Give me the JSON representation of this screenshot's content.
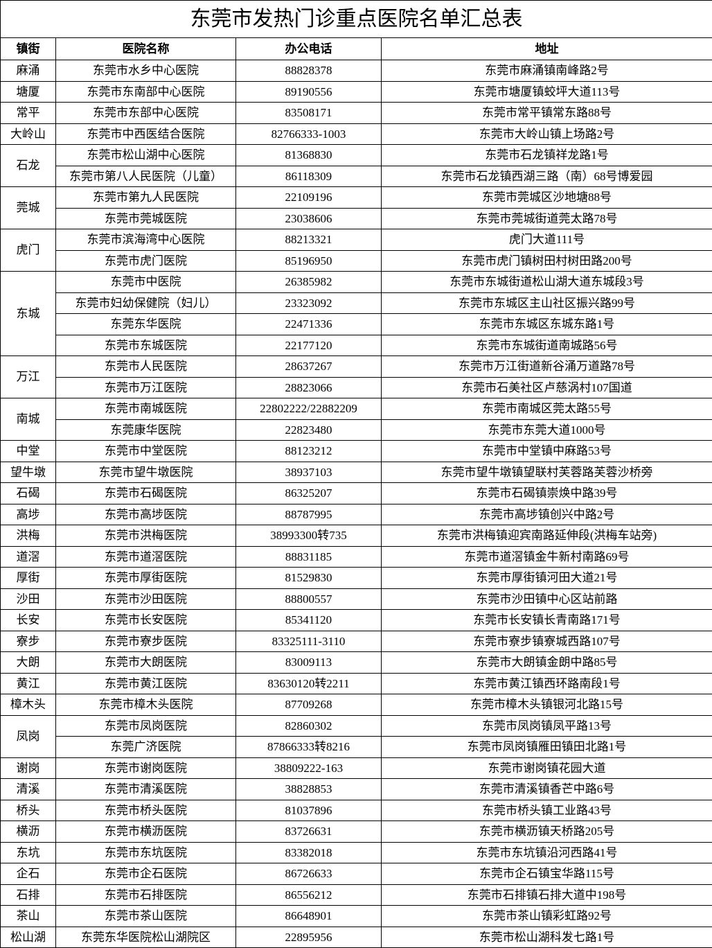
{
  "title": "东莞市发热门诊重点医院名单汇总表",
  "headers": {
    "town": "镇街",
    "hospital": "医院名称",
    "phone": "办公电话",
    "address": "地址"
  },
  "groups": [
    {
      "town": "麻涌",
      "rows": [
        {
          "hospital": "东莞市水乡中心医院",
          "phone": "88828378",
          "address": "东莞市麻涌镇南峰路2号"
        }
      ]
    },
    {
      "town": "塘厦",
      "rows": [
        {
          "hospital": "东莞市东南部中心医院",
          "phone": "89190556",
          "address": "东莞市塘厦镇蛟坪大道113号"
        }
      ]
    },
    {
      "town": "常平",
      "rows": [
        {
          "hospital": "东莞市东部中心医院",
          "phone": "83508171",
          "address": "东莞市常平镇常东路88号"
        }
      ]
    },
    {
      "town": "大岭山",
      "rows": [
        {
          "hospital": "东莞市中西医结合医院",
          "phone": "82766333-1003",
          "address": "东莞市大岭山镇上场路2号"
        }
      ]
    },
    {
      "town": "石龙",
      "rows": [
        {
          "hospital": "东莞市松山湖中心医院",
          "phone": "81368830",
          "address": "东莞市石龙镇祥龙路1号"
        },
        {
          "hospital": "东莞市第八人民医院（儿童）",
          "phone": "86118309",
          "address": "东莞市石龙镇西湖三路（南）68号博爱园"
        }
      ]
    },
    {
      "town": "莞城",
      "rows": [
        {
          "hospital": "东莞市第九人民医院",
          "phone": "22109196",
          "address": "东莞市莞城区沙地塘88号"
        },
        {
          "hospital": "东莞市莞城医院",
          "phone": "23038606",
          "address": "东莞市莞城街道莞太路78号"
        }
      ]
    },
    {
      "town": "虎门",
      "rows": [
        {
          "hospital": "东莞市滨海湾中心医院",
          "phone": "88213321",
          "address": "虎门大道111号"
        },
        {
          "hospital": "东莞市虎门医院",
          "phone": "85196950",
          "address": "东莞市虎门镇树田村树田路200号"
        }
      ]
    },
    {
      "town": "东城",
      "rows": [
        {
          "hospital": "东莞市中医院",
          "phone": "26385982",
          "address": "东莞市东城街道松山湖大道东城段3号"
        },
        {
          "hospital": "东莞市妇幼保健院（妇儿）",
          "phone": "23323092",
          "address": "东莞市东城区主山社区振兴路99号"
        },
        {
          "hospital": "东莞东华医院",
          "phone": "22471336",
          "address": "东莞市东城区东城东路1号"
        },
        {
          "hospital": "东莞市东城医院",
          "phone": "22177120",
          "address": "东莞市东城街道南城路56号"
        }
      ]
    },
    {
      "town": "万江",
      "rows": [
        {
          "hospital": "东莞市人民医院",
          "phone": "28637267",
          "address": "东莞市万江街道新谷涌万道路78号"
        },
        {
          "hospital": "东莞市万江医院",
          "phone": "28823066",
          "address": "东莞市石美社区卢慈涡村107国道"
        }
      ]
    },
    {
      "town": "南城",
      "rows": [
        {
          "hospital": "东莞市南城医院",
          "phone": "22802222/22882209",
          "address": "东莞市南城区莞太路55号"
        },
        {
          "hospital": "东莞康华医院",
          "phone": "22823480",
          "address": "东莞市东莞大道1000号"
        }
      ]
    },
    {
      "town": "中堂",
      "rows": [
        {
          "hospital": "东莞市中堂医院",
          "phone": "88123212",
          "address": "东莞市中堂镇中麻路53号"
        }
      ]
    },
    {
      "town": "望牛墩",
      "rows": [
        {
          "hospital": "东莞市望牛墩医院",
          "phone": "38937103",
          "address": "东莞市望牛墩镇望联村芙蓉路芙蓉沙桥旁"
        }
      ]
    },
    {
      "town": "石碣",
      "rows": [
        {
          "hospital": "东莞市石碣医院",
          "phone": "86325207",
          "address": "东莞市石碣镇崇焕中路39号"
        }
      ]
    },
    {
      "town": "高埗",
      "rows": [
        {
          "hospital": "东莞市高埗医院",
          "phone": "88787995",
          "address": "东莞市高埗镇创兴中路2号"
        }
      ]
    },
    {
      "town": "洪梅",
      "rows": [
        {
          "hospital": "东莞市洪梅医院",
          "phone": "38993300转735",
          "address": "东莞市洪梅镇迎宾南路延伸段(洪梅车站旁)"
        }
      ]
    },
    {
      "town": "道滘",
      "rows": [
        {
          "hospital": "东莞市道滘医院",
          "phone": "88831185",
          "address": "东莞市道滘镇金牛新村南路69号"
        }
      ]
    },
    {
      "town": "厚街",
      "rows": [
        {
          "hospital": "东莞市厚街医院",
          "phone": "81529830",
          "address": "东莞市厚街镇河田大道21号"
        }
      ]
    },
    {
      "town": "沙田",
      "rows": [
        {
          "hospital": "东莞市沙田医院",
          "phone": "88800557",
          "address": "东莞市沙田镇中心区站前路"
        }
      ]
    },
    {
      "town": "长安",
      "rows": [
        {
          "hospital": "东莞市长安医院",
          "phone": "85341120",
          "address": "东莞市长安镇长青南路171号"
        }
      ]
    },
    {
      "town": "寮步",
      "rows": [
        {
          "hospital": "东莞市寮步医院",
          "phone": "83325111-3110",
          "address": "东莞市寮步镇寮城西路107号"
        }
      ]
    },
    {
      "town": "大朗",
      "rows": [
        {
          "hospital": "东莞市大朗医院",
          "phone": "83009113",
          "address": "东莞市大朗镇金朗中路85号"
        }
      ]
    },
    {
      "town": "黄江",
      "rows": [
        {
          "hospital": "东莞市黄江医院",
          "phone": "83630120转2211",
          "address": "东莞市黄江镇西环路南段1号"
        }
      ]
    },
    {
      "town": "樟木头",
      "rows": [
        {
          "hospital": "东莞市樟木头医院",
          "phone": "87709268",
          "address": "东莞市樟木头镇银河北路15号"
        }
      ]
    },
    {
      "town": "凤岗",
      "rows": [
        {
          "hospital": "东莞市凤岗医院",
          "phone": "82860302",
          "address": "东莞市凤岗镇凤平路13号"
        },
        {
          "hospital": "东莞广济医院",
          "phone": "87866333转8216",
          "address": "东莞市凤岗镇雁田镇田北路1号"
        }
      ]
    },
    {
      "town": "谢岗",
      "rows": [
        {
          "hospital": "东莞市谢岗医院",
          "phone": "38809222-163",
          "address": "东莞市谢岗镇花园大道"
        }
      ]
    },
    {
      "town": "清溪",
      "rows": [
        {
          "hospital": "东莞市清溪医院",
          "phone": "38828853",
          "address": "东莞市清溪镇香芒中路6号"
        }
      ]
    },
    {
      "town": "桥头",
      "rows": [
        {
          "hospital": "东莞市桥头医院",
          "phone": "81037896",
          "address": "东莞市桥头镇工业路43号"
        }
      ]
    },
    {
      "town": "横沥",
      "rows": [
        {
          "hospital": "东莞市横沥医院",
          "phone": "83726631",
          "address": "东莞市横沥镇天桥路205号"
        }
      ]
    },
    {
      "town": "东坑",
      "rows": [
        {
          "hospital": "东莞市东坑医院",
          "phone": "83382018",
          "address": "东莞市东坑镇沿河西路41号"
        }
      ]
    },
    {
      "town": "企石",
      "rows": [
        {
          "hospital": "东莞市企石医院",
          "phone": "86726633",
          "address": "东莞市企石镇宝华路115号"
        }
      ]
    },
    {
      "town": "石排",
      "rows": [
        {
          "hospital": "东莞市石排医院",
          "phone": "86556212",
          "address": "东莞市石排镇石排大道中198号"
        }
      ]
    },
    {
      "town": "茶山",
      "rows": [
        {
          "hospital": "东莞市茶山医院",
          "phone": "86648901",
          "address": "东莞市茶山镇彩虹路92号"
        }
      ]
    },
    {
      "town": "松山湖",
      "rows": [
        {
          "hospital": "东莞东华医院松山湖院区",
          "phone": "22895956",
          "address": "东莞市松山湖科发七路1号"
        }
      ]
    }
  ]
}
